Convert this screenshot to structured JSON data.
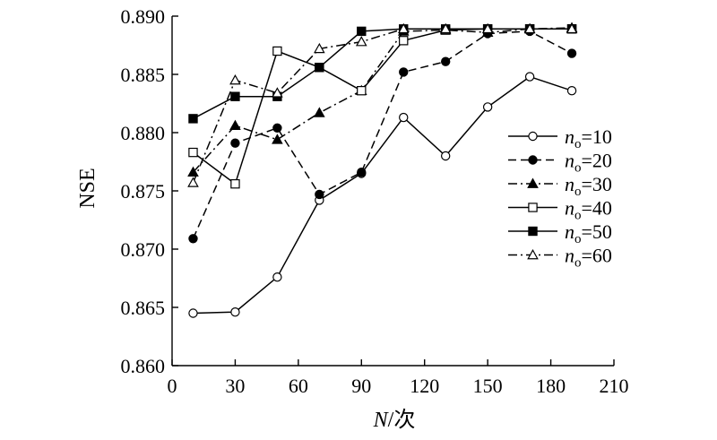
{
  "chart_data": {
    "type": "line",
    "xlabel": "N/次",
    "xlabel_parts": {
      "var": "N",
      "unit": "/次"
    },
    "ylabel": "NSE",
    "xlim": [
      0,
      210
    ],
    "ylim": [
      0.86,
      0.89
    ],
    "x_ticks": [
      0,
      30,
      60,
      90,
      120,
      150,
      180,
      210
    ],
    "x_tick_labels": [
      "0",
      "30",
      "60",
      "90",
      "120",
      "150",
      "180",
      "210"
    ],
    "y_ticks": [
      0.86,
      0.865,
      0.87,
      0.875,
      0.88,
      0.885,
      0.89
    ],
    "y_tick_labels": [
      "0.860",
      "0.865",
      "0.870",
      "0.875",
      "0.880",
      "0.885",
      "0.890"
    ],
    "grid": false,
    "legend_position": "right",
    "legend_var": "n",
    "legend_sub": "o",
    "series": [
      {
        "name": "=10",
        "marker": "circle-open",
        "dash": "solid",
        "x": [
          10,
          30,
          50,
          70,
          90,
          110,
          130,
          150,
          170,
          190
        ],
        "y": [
          0.8645,
          0.8646,
          0.8676,
          0.8742,
          0.8765,
          0.8813,
          0.878,
          0.8822,
          0.8848,
          0.8836
        ]
      },
      {
        "name": "=20",
        "marker": "circle-filled",
        "dash": "dashed",
        "x": [
          10,
          30,
          50,
          70,
          90,
          110,
          130,
          150,
          170,
          190
        ],
        "y": [
          0.8709,
          0.8791,
          0.8804,
          0.8747,
          0.8766,
          0.8852,
          0.8861,
          0.8885,
          0.8887,
          0.8868
        ]
      },
      {
        "name": "=30",
        "marker": "triangle-filled",
        "dash": "dashdot",
        "x": [
          10,
          30,
          50,
          70,
          90,
          110,
          130,
          150,
          170,
          190
        ],
        "y": [
          0.8766,
          0.8806,
          0.8794,
          0.8817,
          0.8836,
          0.8887,
          0.8888,
          0.8886,
          0.8889,
          0.889
        ]
      },
      {
        "name": "=40",
        "marker": "square-open",
        "dash": "solid",
        "x": [
          10,
          30,
          50,
          70,
          90,
          110,
          130,
          150,
          170,
          190
        ],
        "y": [
          0.8783,
          0.8756,
          0.887,
          0.8856,
          0.8836,
          0.8879,
          0.8888,
          0.8889,
          0.8889,
          0.8889
        ]
      },
      {
        "name": "=50",
        "marker": "square-filled",
        "dash": "solid",
        "x": [
          10,
          30,
          50,
          70,
          90,
          110,
          130,
          150,
          170,
          190
        ],
        "y": [
          0.8812,
          0.8831,
          0.8831,
          0.8856,
          0.8887,
          0.8889,
          0.8889,
          0.8889,
          0.8889,
          0.8889
        ]
      },
      {
        "name": "=60",
        "marker": "triangle-open",
        "dash": "dashdot",
        "x": [
          10,
          30,
          50,
          70,
          90,
          110,
          130,
          150,
          170,
          190
        ],
        "y": [
          0.8757,
          0.8845,
          0.8834,
          0.8872,
          0.8878,
          0.8889,
          0.8889,
          0.8889,
          0.8889,
          0.8889
        ]
      }
    ]
  }
}
